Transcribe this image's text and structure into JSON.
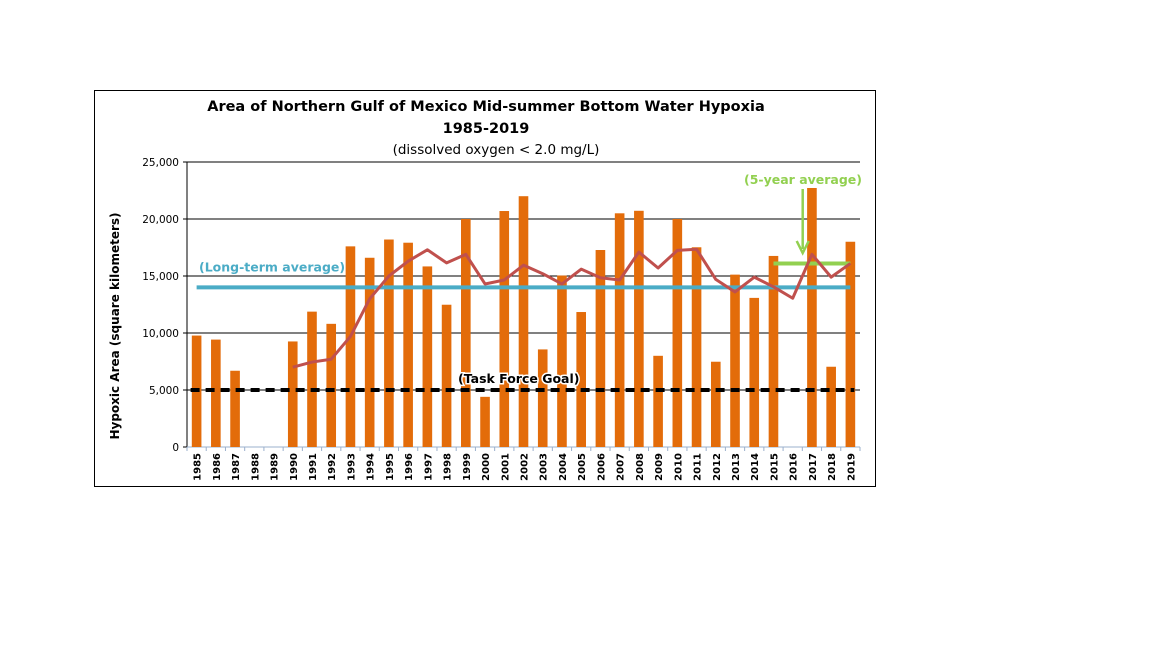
{
  "chart_data": {
    "type": "bar",
    "title": "Area of Northern Gulf of Mexico Mid-summer Bottom Water Hypoxia",
    "title_line2": "1985-2019",
    "subtitle": "(dissolved oxygen < 2.0 mg/L)",
    "xlabel": "",
    "ylabel": "Hypoxic Area (square kilometers)",
    "ylim": [
      0,
      25000
    ],
    "yticks": [
      0,
      5000,
      10000,
      15000,
      20000,
      25000
    ],
    "ytick_labels": [
      "0",
      "5,000",
      "10,000",
      "15,000",
      "20,000",
      "25,000"
    ],
    "grid": true,
    "categories": [
      "1985",
      "1986",
      "1987",
      "1988",
      "1989",
      "1990",
      "1991",
      "1992",
      "1993",
      "1994",
      "1995",
      "1996",
      "1997",
      "1998",
      "1999",
      "2000",
      "2001",
      "2002",
      "2003",
      "2004",
      "2005",
      "2006",
      "2007",
      "2008",
      "2009",
      "2010",
      "2011",
      "2012",
      "2013",
      "2014",
      "2015",
      "2016",
      "2017",
      "2018",
      "2019"
    ],
    "series": [
      {
        "name": "Hypoxic area",
        "type": "bar",
        "color": "#E36C0A",
        "values": [
          9774,
          9422,
          6688,
          0,
          null,
          9259,
          11874,
          10804,
          17600,
          16600,
          18200,
          17920,
          15840,
          12480,
          20000,
          4400,
          20700,
          22000,
          8560,
          15040,
          11840,
          17280,
          20500,
          20720,
          8000,
          20000,
          17520,
          7480,
          15120,
          13080,
          16760,
          null,
          22720,
          7040,
          18005
        ]
      },
      {
        "name": "5-year running average",
        "type": "line",
        "color": "#C0504D",
        "values": [
          null,
          null,
          null,
          null,
          null,
          7000,
          7450,
          7700,
          9700,
          13000,
          15000,
          16300,
          17300,
          16150,
          16900,
          14300,
          14650,
          15950,
          15200,
          14300,
          15600,
          14850,
          14650,
          17100,
          15700,
          17250,
          17350,
          14700,
          13600,
          14900,
          14050,
          13050,
          16900,
          14900,
          16100
        ]
      }
    ],
    "reference_lines": [
      {
        "name": "Long-term average",
        "label": "(Long-term average)",
        "value": 14000,
        "from": "1985",
        "to": "2019",
        "color": "#4BACC6",
        "style": "solid"
      },
      {
        "name": "Task Force Goal",
        "label": "(Task Force Goal)",
        "value": 5000,
        "from": "1985",
        "to": "2019",
        "color": "#000000",
        "style": "dashed"
      },
      {
        "name": "5-year average",
        "label": "(5-year average)",
        "value": 16100,
        "from": "2015",
        "to": "2019",
        "color": "#92D050",
        "style": "solid"
      }
    ],
    "annotations": [
      {
        "text": "(Long-term average)",
        "color": "#4BACC6"
      },
      {
        "text": "(Task Force Goal)",
        "color": "#000000"
      },
      {
        "text": "(5-year average)",
        "color": "#92D050",
        "arrow": "down"
      }
    ]
  }
}
